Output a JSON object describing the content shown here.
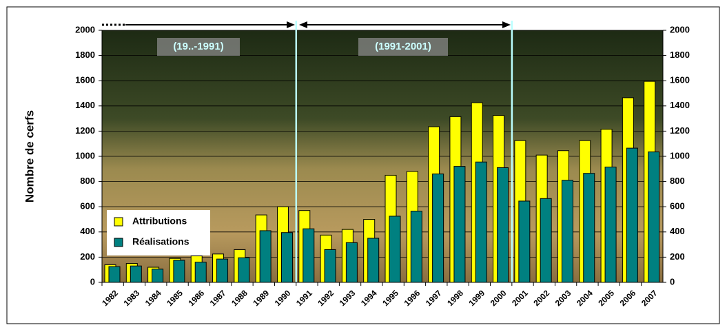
{
  "chart_data": {
    "type": "bar",
    "y_label": "Nombre de cerfs",
    "categories": [
      "1982",
      "1983",
      "1984",
      "1985",
      "1986",
      "1987",
      "1988",
      "1989",
      "1990",
      "1991",
      "1992",
      "1993",
      "1994",
      "1995",
      "1996",
      "1997",
      "1998",
      "1999",
      "2000",
      "2001",
      "2002",
      "2003",
      "2004",
      "2005",
      "2006",
      "2007"
    ],
    "series": [
      {
        "name": "Attributions",
        "color": "#ffff00",
        "values": [
          140,
          150,
          120,
          190,
          210,
          225,
          260,
          535,
          600,
          570,
          375,
          420,
          500,
          850,
          880,
          1235,
          1315,
          1425,
          1325,
          1125,
          1010,
          1045,
          1125,
          1215,
          1465,
          1595
        ]
      },
      {
        "name": "Réalisations",
        "color": "#008080",
        "values": [
          125,
          130,
          105,
          175,
          160,
          185,
          195,
          410,
          395,
          425,
          260,
          315,
          350,
          525,
          565,
          860,
          920,
          955,
          910,
          645,
          665,
          810,
          865,
          915,
          1065,
          1035
        ]
      }
    ],
    "ylim": [
      0,
      2000
    ],
    "yticks": [
      0,
      200,
      400,
      600,
      800,
      1000,
      1200,
      1400,
      1600,
      1800,
      2000
    ],
    "y2lim": [
      0,
      2000
    ],
    "y2ticks": [
      0,
      200,
      400,
      600,
      800,
      1000,
      1200,
      1400,
      1600,
      1800,
      2000
    ],
    "grid": true,
    "legend": "lower-left",
    "annotations": [
      "(19..-1991)",
      "(1991-2001)"
    ]
  }
}
